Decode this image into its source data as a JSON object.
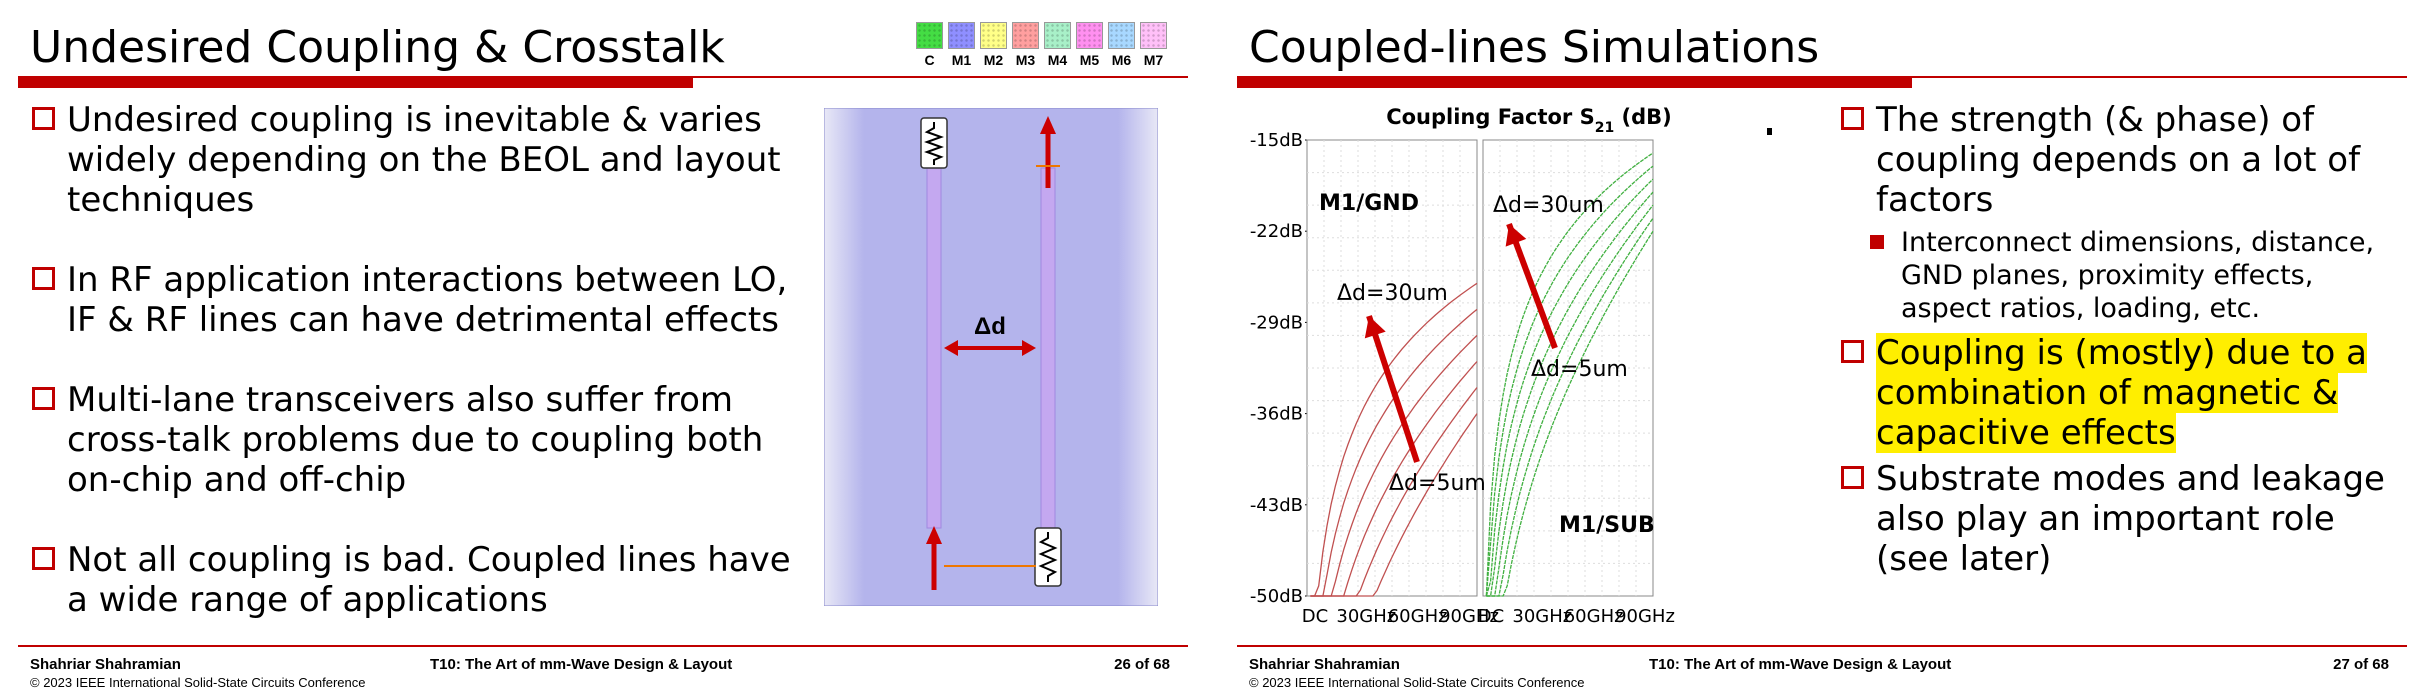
{
  "left": {
    "title": "Undesired Coupling & Crosstalk",
    "legend": [
      {
        "label": "C",
        "color": "#44dd44"
      },
      {
        "label": "M1",
        "color": "#8f8fff"
      },
      {
        "label": "M2",
        "color": "#ffff88"
      },
      {
        "label": "M3",
        "color": "#ff9f9f"
      },
      {
        "label": "M4",
        "color": "#a8f0c8"
      },
      {
        "label": "M5",
        "color": "#ff90f0"
      },
      {
        "label": "M6",
        "color": "#a8d8ff"
      },
      {
        "label": "M7",
        "color": "#ffc0f8"
      }
    ],
    "bullets": [
      "Undesired coupling is inevitable & varies widely depending on the BEOL and layout techniques",
      "In RF application interactions between LO, IF & RF lines can have detrimental effects",
      "Multi-lane transceivers also suffer from cross-talk problems due to coupling both on-chip and off-chip",
      "Not all coupling is bad. Coupled lines have a wide range of applications"
    ],
    "figure": {
      "delta_label": "Δd"
    },
    "footer": {
      "author": "Shahriar Shahramian",
      "copyright": "© 2023 IEEE International Solid-State Circuits Conference",
      "course": "T10: The Art of mm-Wave Design & Layout",
      "page": "26 of 68"
    }
  },
  "right": {
    "title": "Coupled-lines Simulations",
    "bullets": [
      {
        "type": "box",
        "text": "The strength (& phase) of coupling depends on a lot of factors",
        "highlight": false
      },
      {
        "type": "sub",
        "text": "Interconnect dimensions, distance, GND planes, proximity effects, aspect ratios, loading, etc.",
        "highlight": false
      },
      {
        "type": "box",
        "text": "Coupling is (mostly) due to a combination of magnetic & capacitive effects",
        "highlight": true
      },
      {
        "type": "box",
        "text": "Substrate modes and leakage also play an important role (see later)",
        "highlight": false
      }
    ],
    "footer": {
      "author": "Shahriar Shahramian",
      "copyright": "© 2023 IEEE International Solid-State Circuits Conference",
      "course": "T10: The Art of mm-Wave Design & Layout",
      "page": "27 of 68"
    }
  },
  "chart_data": {
    "type": "line",
    "title_main": "Coupling Factor S",
    "title_sub": "21",
    "title_unit": " (dB)",
    "yticks": [
      "-15dB",
      "-22dB",
      "-29dB",
      "-36dB",
      "-43dB",
      "-50dB"
    ],
    "ylim": [
      -50,
      -15
    ],
    "xticks": [
      "DC",
      "30GHz",
      "60GHz",
      "90GHz"
    ],
    "xlim": [
      0,
      100
    ],
    "panels": [
      {
        "name": "M1/GND",
        "color": "#c05050",
        "label_top": "Δd=30um",
        "label_bottom": "Δd=5um",
        "series_end_db": [
          -26,
          -28,
          -30,
          -32,
          -34,
          -36
        ]
      },
      {
        "name": "M1/SUB",
        "color": "#40b040",
        "label_top": "Δd=30um",
        "label_bottom": "Δd=5um",
        "series_end_db": [
          -16,
          -17,
          -18,
          -19,
          -20,
          -21,
          -22
        ]
      }
    ]
  }
}
